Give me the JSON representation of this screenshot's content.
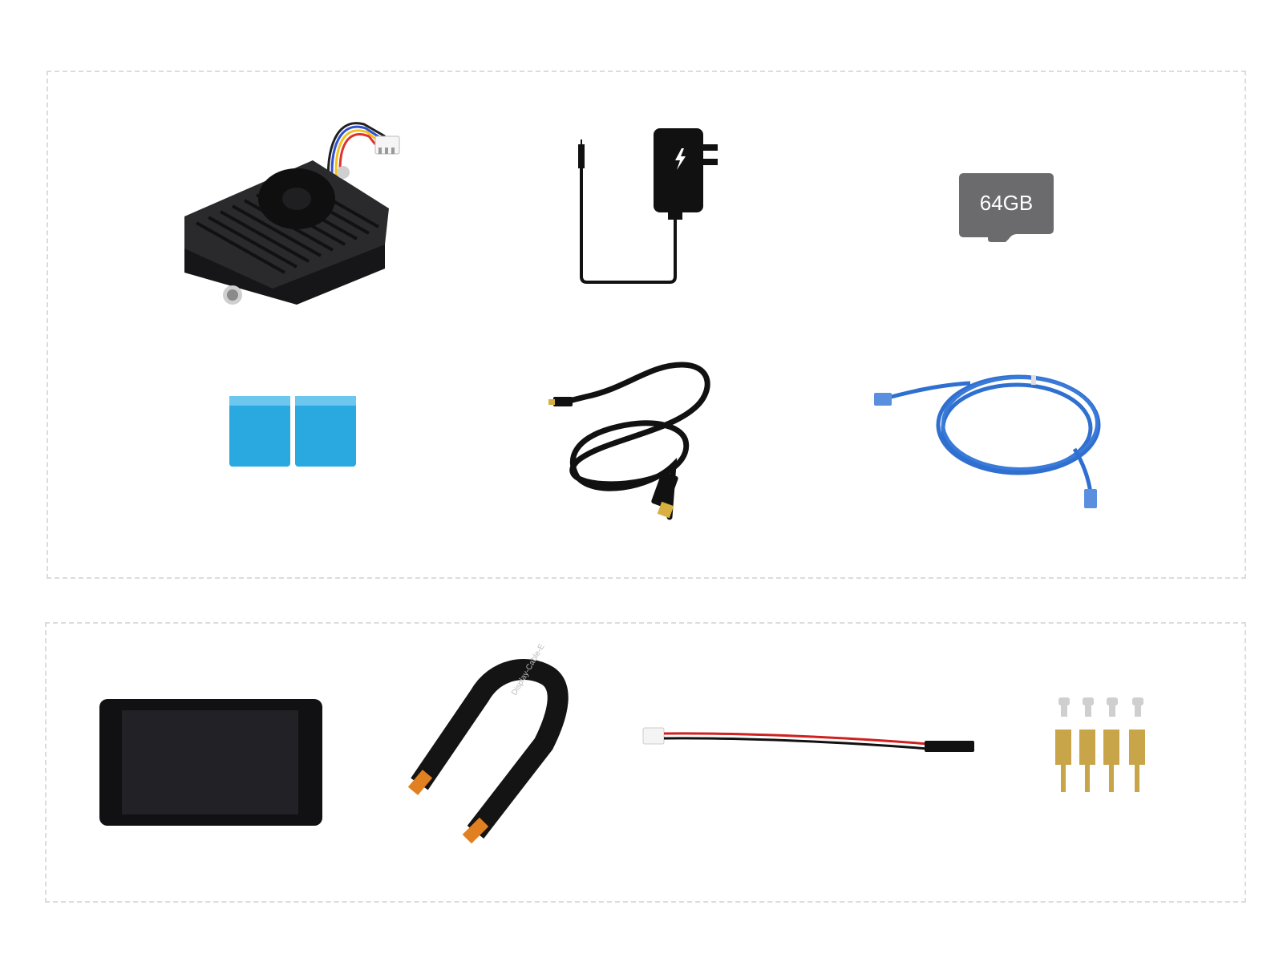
{
  "sd_card": {
    "capacity_label": "64GB"
  },
  "ribbon_cable": {
    "print_label": "Display-Cable-E"
  },
  "colors": {
    "dashed_border": "#dcdcdc",
    "heatsink": "#1e1e20",
    "sd_card": "#6b6b6d",
    "thermal_pad": "#2aa8e0",
    "ethernet_cable": "#2f6fd0",
    "brass": "#c9a54a"
  },
  "panels": [
    {
      "name": "package-contents-main",
      "items": [
        "cooling-fan-heatsink",
        "power-adapter",
        "micro-sd-card",
        "thermal-pads",
        "micro-hdmi-cable",
        "ethernet-cable"
      ]
    },
    {
      "name": "package-contents-display",
      "items": [
        "touch-display",
        "display-ribbon-cable",
        "power-wire-cable",
        "screws-and-standoffs"
      ]
    }
  ]
}
